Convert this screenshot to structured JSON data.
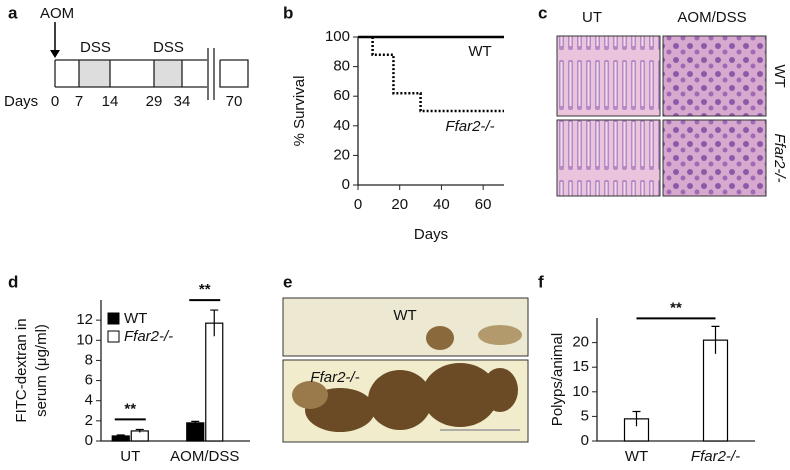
{
  "panel_labels": [
    "a",
    "b",
    "c",
    "d",
    "e",
    "f"
  ],
  "timeline": {
    "start": "AOM",
    "treatments": [
      "DSS",
      "DSS"
    ],
    "axis_label": "Days",
    "days": [
      0,
      7,
      14,
      29,
      34,
      70
    ]
  },
  "histology": {
    "columns": [
      "UT",
      "AOM/DSS"
    ],
    "rows": [
      "WT",
      "Ffar2-/-"
    ]
  },
  "gross": {
    "labels": [
      "WT",
      "Ffar2-/-"
    ]
  },
  "chart_data": [
    {
      "type": "line",
      "xlabel": "Days",
      "ylabel": "% Survival",
      "xlim": [
        0,
        70
      ],
      "xticks": [
        0,
        20,
        40,
        60
      ],
      "ylim": [
        0,
        100
      ],
      "yticks": [
        0,
        20,
        40,
        60,
        80,
        100
      ],
      "series": [
        {
          "name": "WT",
          "color": "#000000",
          "x": [
            0,
            70
          ],
          "values": [
            100,
            100
          ]
        },
        {
          "name": "Ffar2-/-",
          "color": "#000000",
          "style": "dotted",
          "x": [
            7,
            7,
            17,
            17,
            30,
            30,
            70
          ],
          "values": [
            100,
            88,
            88,
            62,
            62,
            50,
            50
          ]
        }
      ]
    },
    {
      "type": "bar",
      "ylabel": [
        "FITC-dextran in",
        "serum (μg/ml)"
      ],
      "categories": [
        "UT",
        "AOM/DSS"
      ],
      "ylim": [
        0,
        14
      ],
      "yticks": [
        0,
        2,
        4,
        6,
        8,
        10,
        12
      ],
      "legend": "upper left",
      "series": [
        {
          "name": "WT",
          "color": "#000000",
          "values": [
            0.5,
            1.8
          ],
          "errors": [
            0.1,
            0.15
          ]
        },
        {
          "name": "Ffar2-/-",
          "color": "#ffffff",
          "values": [
            1.0,
            11.7
          ],
          "errors": [
            0.15,
            1.3
          ]
        }
      ],
      "annotations": [
        "**",
        "**"
      ]
    },
    {
      "type": "bar",
      "ylabel": "Polyps/animal",
      "categories": [
        "WT",
        "Ffar2-/-"
      ],
      "ylim": [
        0,
        25
      ],
      "yticks": [
        0,
        5,
        10,
        15,
        20
      ],
      "color": "#ffffff",
      "values": [
        4.5,
        20.5
      ],
      "errors": [
        1.5,
        2.8
      ],
      "annotations": [
        "**"
      ]
    }
  ]
}
